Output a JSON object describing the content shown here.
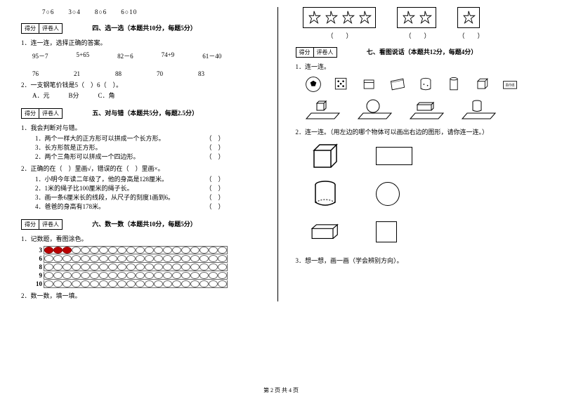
{
  "topRow": "7○6　　3○4　　8○6　　6○10",
  "scoreLabels": {
    "score": "得分",
    "reviewer": "评卷人"
  },
  "sec4": {
    "title": "四、选一选（本题共10分，每题5分）",
    "q1": "1．连一连，选择正确的答案。",
    "row1": [
      "95－7",
      "5+65",
      "82－6",
      "74+9",
      "61－40"
    ],
    "row2": [
      "76",
      "21",
      "88",
      "70",
      "83"
    ],
    "q2": "2．一支钢笔价钱是5（　）6（　）。",
    "opts": "A．元　　　B分　　　C．角"
  },
  "sec5": {
    "title": "五、对与错（本题共5分，每题2.5分）",
    "q1": "1．我会判断对与错。",
    "items1": [
      "1．两个一样大的正方形可以拼成一个长方形。",
      "3．长方形就是正方形。",
      "2．两个三角形可以拼成一个四边形。"
    ],
    "q2": "2．正确的在（　）里画√，错误的在（　）里画×。",
    "items2": [
      "1．小明今年读二年级了，他的身高是128厘米。",
      "2．1米的绳子比100厘米的绳子长。",
      "3．画一条6厘米长的线段，从尺子的刻度1画到6。",
      "4．爸爸的身高有178米。"
    ]
  },
  "sec6": {
    "title": "六、数一数（本题共10分，每题5分）",
    "q1": "1．记数题，看图涂色。",
    "q2": "2．数一数，填一填。",
    "labels": [
      "3",
      "6",
      "8",
      "9",
      "10"
    ]
  },
  "sec7": {
    "title": "七、看图说话（本题共12分，每题4分）",
    "q1": "1．连一连。",
    "q2": "2．连一连。（用左边的哪个物体可以画出右边的图形，请你连一连。）",
    "q3": "3．想一想，画一画（学会辨别方向）。"
  },
  "footer": "第 2 页 共 4 页",
  "colors": {
    "text": "#000000",
    "beadRed": "#bb0000",
    "line": "#666666"
  }
}
